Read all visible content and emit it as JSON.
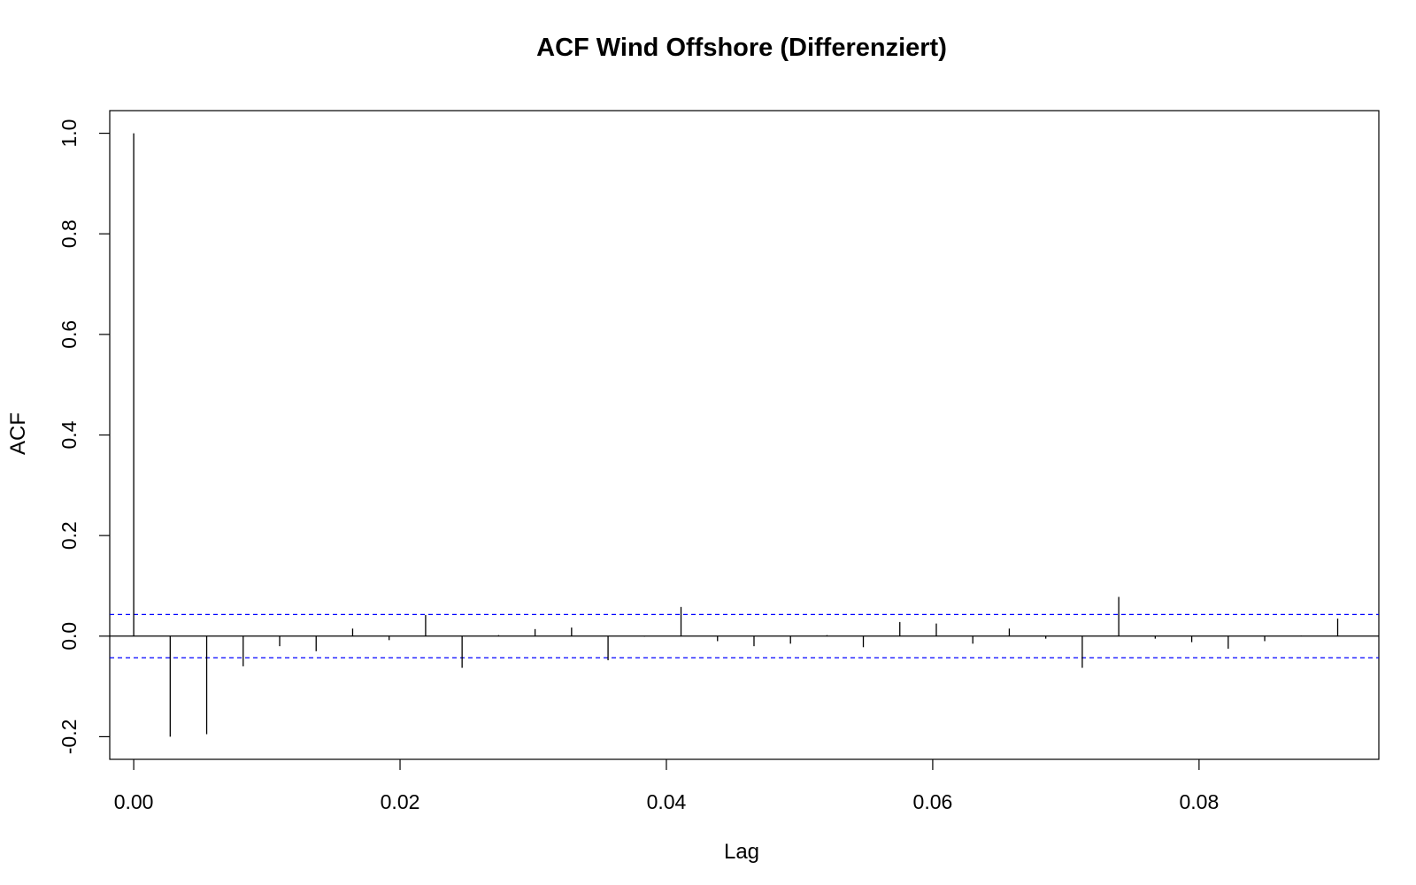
{
  "chart_data": {
    "type": "bar",
    "title": "ACF Wind Offshore (Differenziert)",
    "xlabel": "Lag",
    "ylabel": "ACF",
    "xlim": [
      -0.0018,
      0.0935
    ],
    "ylim": [
      -0.245,
      1.045
    ],
    "x_ticks": [
      {
        "value": 0.0,
        "label": "0.00"
      },
      {
        "value": 0.02,
        "label": "0.02"
      },
      {
        "value": 0.04,
        "label": "0.04"
      },
      {
        "value": 0.06,
        "label": "0.06"
      },
      {
        "value": 0.08,
        "label": "0.08"
      }
    ],
    "y_ticks": [
      {
        "value": -0.2,
        "label": "-0.2"
      },
      {
        "value": 0.0,
        "label": "0.0"
      },
      {
        "value": 0.2,
        "label": "0.2"
      },
      {
        "value": 0.4,
        "label": "0.4"
      },
      {
        "value": 0.6,
        "label": "0.6"
      },
      {
        "value": 0.8,
        "label": "0.8"
      },
      {
        "value": 1.0,
        "label": "1.0"
      }
    ],
    "lag_step": 0.00274,
    "lags": [
      0.0,
      0.00274,
      0.00548,
      0.00822,
      0.01096,
      0.0137,
      0.01644,
      0.01918,
      0.02192,
      0.02466,
      0.0274,
      0.03014,
      0.03288,
      0.03562,
      0.03836,
      0.0411,
      0.04384,
      0.04658,
      0.04932,
      0.05206,
      0.05479,
      0.05753,
      0.06027,
      0.06301,
      0.06575,
      0.06849,
      0.07123,
      0.07397,
      0.07671,
      0.07945,
      0.08219,
      0.08493,
      0.08767,
      0.09041
    ],
    "values": [
      1.0,
      -0.2,
      -0.195,
      -0.06,
      -0.02,
      -0.03,
      0.015,
      -0.008,
      0.042,
      -0.063,
      0.002,
      0.014,
      0.017,
      -0.048,
      -0.001,
      0.058,
      -0.01,
      -0.02,
      -0.015,
      0.002,
      -0.022,
      0.028,
      0.025,
      -0.015,
      0.015,
      -0.005,
      -0.063,
      0.078,
      -0.005,
      -0.012,
      -0.025,
      -0.01,
      0.001,
      0.035
    ],
    "confidence_bounds": [
      0.043,
      -0.043
    ],
    "confidence_color": "#0000ff",
    "bar_color": "#000000",
    "grid": false,
    "legend": false
  }
}
